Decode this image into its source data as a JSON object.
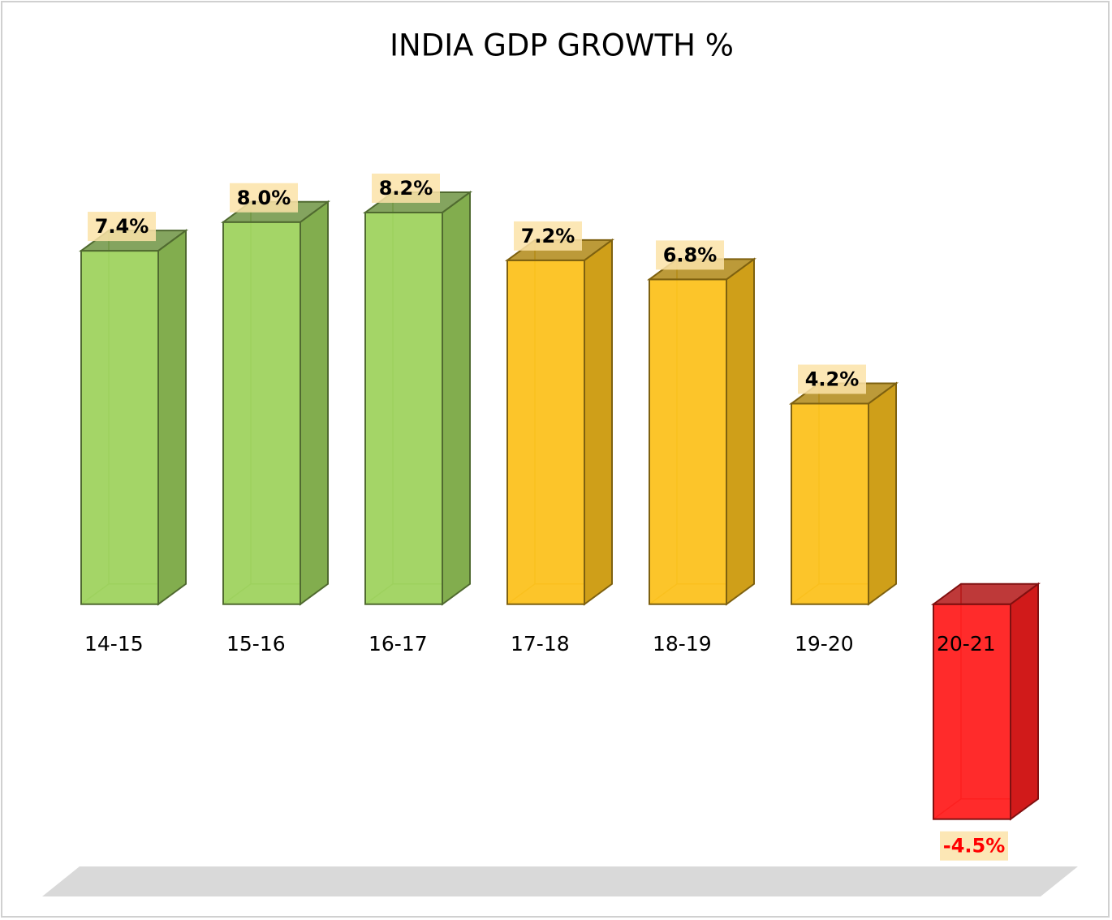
{
  "chart_data": {
    "type": "bar3d",
    "title": "INDIA GDP GROWTH %",
    "categories": [
      "14-15",
      "15-16",
      "16-17",
      "17-18",
      "18-19",
      "19-20",
      "20-21"
    ],
    "values": [
      7.4,
      8.0,
      8.2,
      7.2,
      6.8,
      4.2,
      -4.5
    ],
    "value_labels": [
      "7.4%",
      "8.0%",
      "8.2%",
      "7.2%",
      "6.8%",
      "4.2%",
      "-4.5%"
    ],
    "colors": [
      "#9fd35f",
      "#9fd35f",
      "#9fd35f",
      "#fcc21f",
      "#fcc21f",
      "#fcc21f",
      "#ff2020"
    ],
    "value_label_colors": [
      "#000000",
      "#000000",
      "#000000",
      "#000000",
      "#000000",
      "#000000",
      "#ff0000"
    ],
    "ylim": [
      -6,
      10
    ]
  }
}
